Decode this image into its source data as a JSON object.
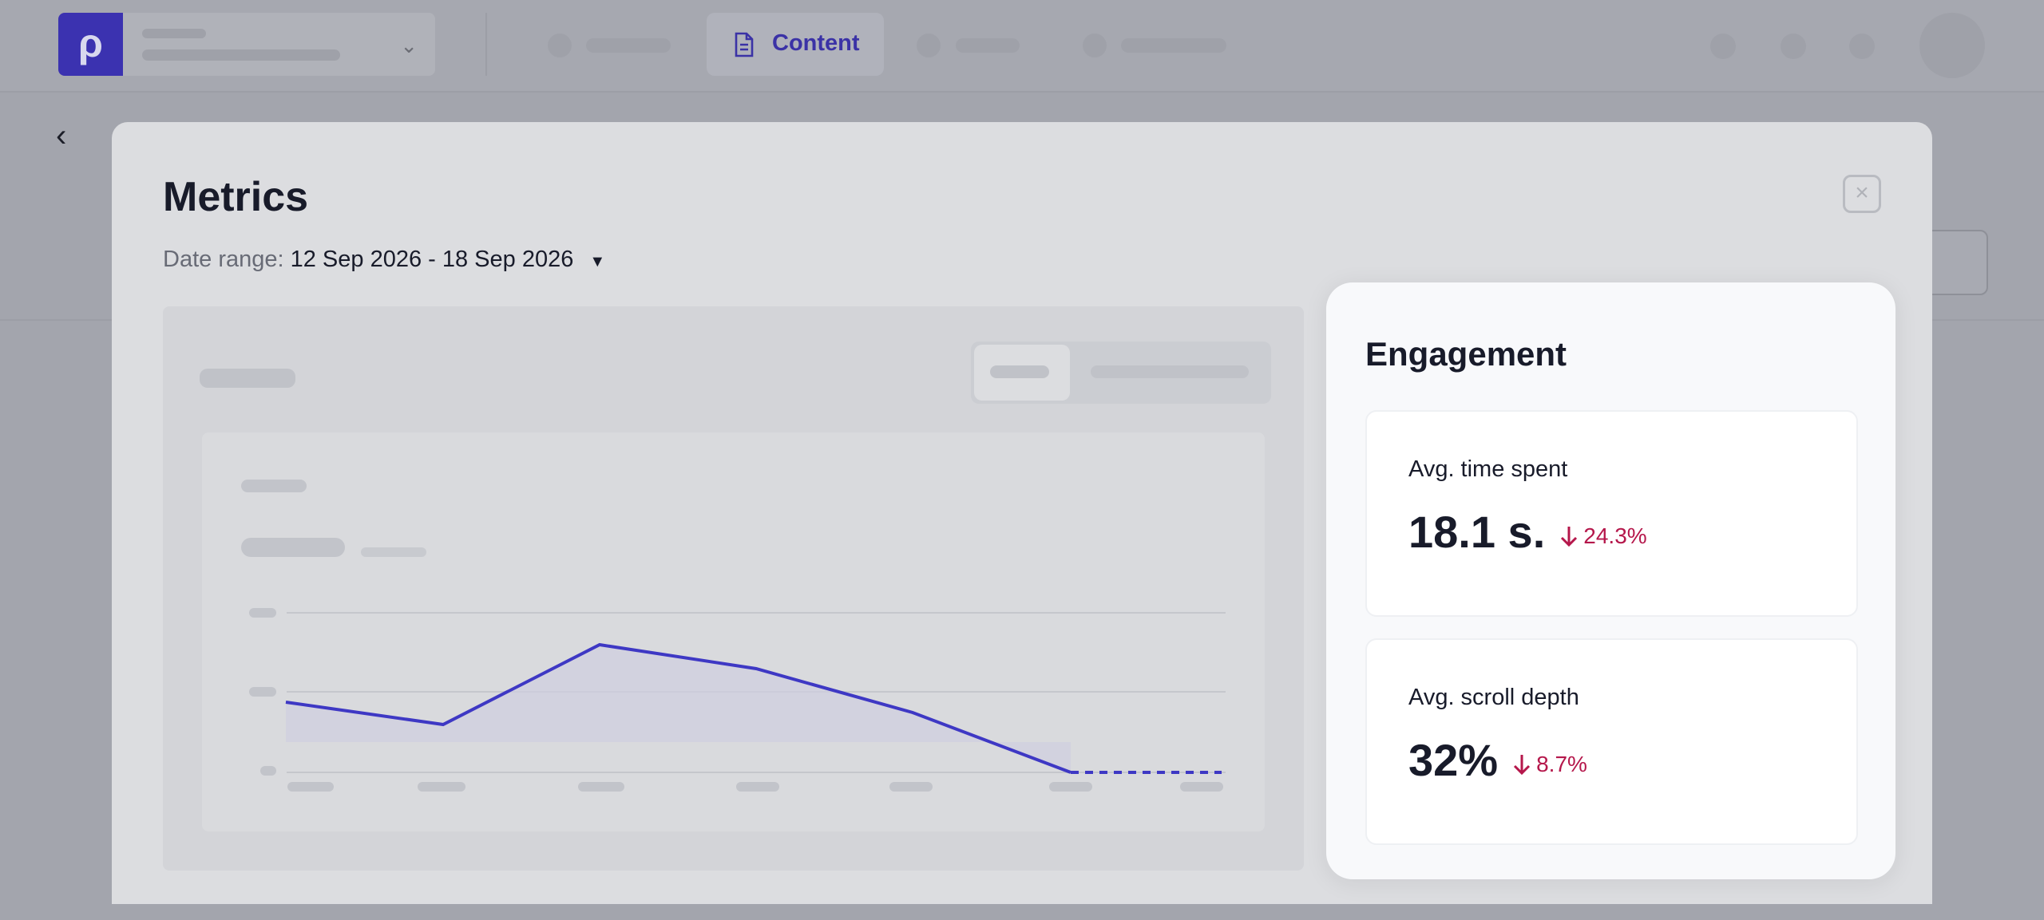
{
  "nav": {
    "active_tab": "Content"
  },
  "modal": {
    "title": "Metrics",
    "date_range_label": "Date range:",
    "date_range_value": "12 Sep 2026 - 18 Sep 2026"
  },
  "engagement": {
    "title": "Engagement",
    "metrics": [
      {
        "label": "Avg. time spent",
        "value": "18.1 s.",
        "change": "24.3%"
      },
      {
        "label": "Avg. scroll depth",
        "value": "32%",
        "change": "8.7%"
      }
    ]
  }
}
